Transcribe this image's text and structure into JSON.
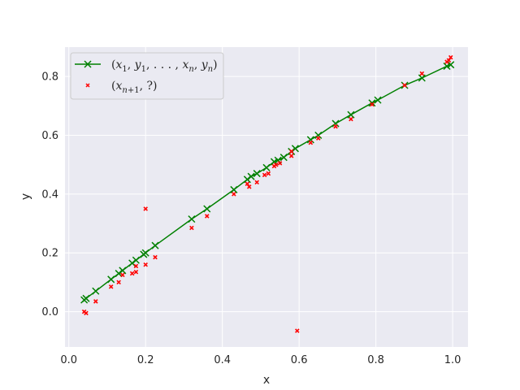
{
  "chart_data": {
    "type": "scatter",
    "xlabel": "x",
    "ylabel": "y",
    "xlim": [
      -0.01,
      1.04
    ],
    "ylim": [
      -0.12,
      0.9
    ],
    "xticks": [
      "0.0",
      "0.2",
      "0.4",
      "0.6",
      "0.8",
      "1.0"
    ],
    "xtick_values": [
      0.0,
      0.2,
      0.4,
      0.6,
      0.8,
      1.0
    ],
    "yticks": [
      "0.0",
      "0.2",
      "0.4",
      "0.6",
      "0.8"
    ],
    "ytick_values": [
      0.0,
      0.2,
      0.4,
      0.6,
      0.8
    ],
    "grid": true,
    "legend_position": "top-left",
    "colors": {
      "background": "#eaeaf2",
      "grid": "#ffffff",
      "fit_line": "#008000",
      "new_points": "#ff0000",
      "text": "#262626"
    },
    "series": [
      {
        "name": "(x_1, y_1, ..., x_n, y_n)",
        "kind": "line-x-markers",
        "x": [
          0.04,
          0.045,
          0.07,
          0.11,
          0.13,
          0.14,
          0.165,
          0.175,
          0.195,
          0.2,
          0.225,
          0.32,
          0.36,
          0.43,
          0.465,
          0.475,
          0.49,
          0.515,
          0.535,
          0.545,
          0.56,
          0.58,
          0.59,
          0.63,
          0.65,
          0.695,
          0.735,
          0.79,
          0.805,
          0.875,
          0.92,
          0.985,
          0.995
        ],
        "y": [
          0.04,
          0.045,
          0.07,
          0.11,
          0.13,
          0.14,
          0.165,
          0.175,
          0.195,
          0.2,
          0.225,
          0.315,
          0.35,
          0.415,
          0.45,
          0.46,
          0.47,
          0.49,
          0.51,
          0.515,
          0.525,
          0.545,
          0.555,
          0.585,
          0.6,
          0.64,
          0.67,
          0.71,
          0.72,
          0.77,
          0.795,
          0.835,
          0.84
        ]
      },
      {
        "name": "(x_{n+1}, ?)",
        "kind": "scatter-x",
        "x": [
          0.04,
          0.045,
          0.07,
          0.11,
          0.13,
          0.14,
          0.165,
          0.175,
          0.175,
          0.2,
          0.2,
          0.225,
          0.32,
          0.36,
          0.43,
          0.465,
          0.47,
          0.49,
          0.51,
          0.52,
          0.535,
          0.54,
          0.55,
          0.58,
          0.58,
          0.595,
          0.63,
          0.65,
          0.695,
          0.735,
          0.79,
          0.875,
          0.92,
          0.985,
          0.99,
          0.995
        ],
        "y": [
          0.0,
          -0.005,
          0.035,
          0.085,
          0.1,
          0.125,
          0.13,
          0.135,
          0.155,
          0.16,
          0.35,
          0.185,
          0.285,
          0.325,
          0.4,
          0.435,
          0.425,
          0.44,
          0.465,
          0.47,
          0.495,
          0.5,
          0.505,
          0.53,
          0.545,
          -0.065,
          0.575,
          0.59,
          0.63,
          0.655,
          0.705,
          0.77,
          0.81,
          0.85,
          0.855,
          0.865
        ]
      }
    ]
  }
}
